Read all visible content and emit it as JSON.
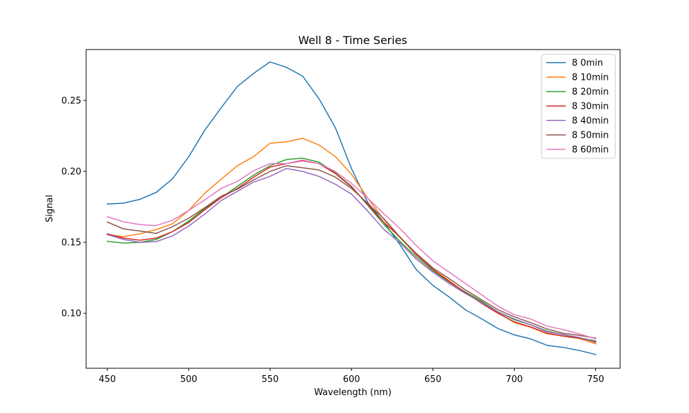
{
  "chart_data": {
    "type": "line",
    "title": "Well 8 - Time Series",
    "xlabel": "Wavelength (nm)",
    "ylabel": "Signal",
    "xlim": [
      437,
      765
    ],
    "ylim": [
      0.0613,
      0.2858
    ],
    "xticks": [
      450,
      500,
      550,
      600,
      650,
      700,
      750
    ],
    "xtick_labels": [
      "450",
      "500",
      "550",
      "600",
      "650",
      "700",
      "750"
    ],
    "yticks": [
      0.1,
      0.15,
      0.2,
      0.25
    ],
    "ytick_labels": [
      "0.10",
      "0.15",
      "0.20",
      "0.25"
    ],
    "grid": false,
    "legend_position": "top-right",
    "x": [
      450,
      460,
      470,
      480,
      490,
      500,
      510,
      520,
      530,
      540,
      550,
      560,
      570,
      580,
      590,
      600,
      610,
      620,
      630,
      640,
      650,
      660,
      670,
      680,
      690,
      700,
      710,
      720,
      730,
      740,
      750
    ],
    "series": [
      {
        "name": "8 0min",
        "color": "#1f77b4",
        "values": [
          0.177,
          0.1776,
          0.1803,
          0.1852,
          0.1947,
          0.2103,
          0.2292,
          0.2449,
          0.2599,
          0.2691,
          0.2771,
          0.2733,
          0.2671,
          0.2512,
          0.231,
          0.202,
          0.178,
          0.164,
          0.148,
          0.1305,
          0.1197,
          0.1115,
          0.1025,
          0.096,
          0.0893,
          0.0848,
          0.082,
          0.0775,
          0.076,
          0.0738,
          0.071
        ]
      },
      {
        "name": "8 10min",
        "color": "#ff7f0e",
        "values": [
          0.1553,
          0.154,
          0.156,
          0.159,
          0.163,
          0.1725,
          0.1847,
          0.1945,
          0.204,
          0.2105,
          0.2198,
          0.2208,
          0.2233,
          0.2186,
          0.2105,
          0.198,
          0.181,
          0.166,
          0.153,
          0.1415,
          0.131,
          0.123,
          0.1145,
          0.108,
          0.1005,
          0.0935,
          0.0902,
          0.0856,
          0.084,
          0.0822,
          0.0785
        ]
      },
      {
        "name": "8 20min",
        "color": "#2ca02c",
        "values": [
          0.1507,
          0.1495,
          0.15,
          0.152,
          0.1575,
          0.165,
          0.174,
          0.1815,
          0.1895,
          0.1975,
          0.204,
          0.2083,
          0.2093,
          0.2065,
          0.199,
          0.1895,
          0.176,
          0.1625,
          0.1505,
          0.1395,
          0.13,
          0.122,
          0.115,
          0.1085,
          0.101,
          0.0955,
          0.092,
          0.0875,
          0.085,
          0.0828,
          0.0805
        ]
      },
      {
        "name": "8 30min",
        "color": "#d62728",
        "values": [
          0.156,
          0.153,
          0.1515,
          0.153,
          0.1575,
          0.164,
          0.173,
          0.1815,
          0.188,
          0.196,
          0.203,
          0.2055,
          0.2075,
          0.2055,
          0.1985,
          0.189,
          0.1765,
          0.164,
          0.1535,
          0.141,
          0.131,
          0.1225,
          0.1145,
          0.107,
          0.1,
          0.094,
          0.0905,
          0.086,
          0.084,
          0.0825,
          0.08
        ]
      },
      {
        "name": "8 40min",
        "color": "#9467bd",
        "values": [
          0.1555,
          0.152,
          0.15,
          0.1505,
          0.1545,
          0.1615,
          0.17,
          0.1795,
          0.186,
          0.1925,
          0.1965,
          0.202,
          0.2,
          0.1965,
          0.191,
          0.184,
          0.172,
          0.159,
          0.1495,
          0.138,
          0.129,
          0.121,
          0.114,
          0.1075,
          0.101,
          0.096,
          0.092,
          0.087,
          0.085,
          0.083,
          0.0795
        ]
      },
      {
        "name": "8 50min",
        "color": "#8c564b",
        "values": [
          0.1643,
          0.1595,
          0.158,
          0.1563,
          0.161,
          0.167,
          0.1745,
          0.1825,
          0.1875,
          0.194,
          0.2,
          0.204,
          0.2025,
          0.201,
          0.196,
          0.188,
          0.1775,
          0.1665,
          0.1535,
          0.142,
          0.132,
          0.1245,
          0.1165,
          0.1095,
          0.1025,
          0.0975,
          0.0935,
          0.089,
          0.086,
          0.0845,
          0.0825
        ]
      },
      {
        "name": "8 60min",
        "color": "#e377c2",
        "values": [
          0.168,
          0.1645,
          0.1625,
          0.1618,
          0.1655,
          0.1725,
          0.18,
          0.188,
          0.193,
          0.2005,
          0.2055,
          0.2055,
          0.208,
          0.2055,
          0.2,
          0.1915,
          0.181,
          0.17,
          0.1595,
          0.1475,
          0.137,
          0.129,
          0.121,
          0.113,
          0.105,
          0.099,
          0.096,
          0.091,
          0.0885,
          0.0855,
          0.082
        ]
      }
    ]
  }
}
